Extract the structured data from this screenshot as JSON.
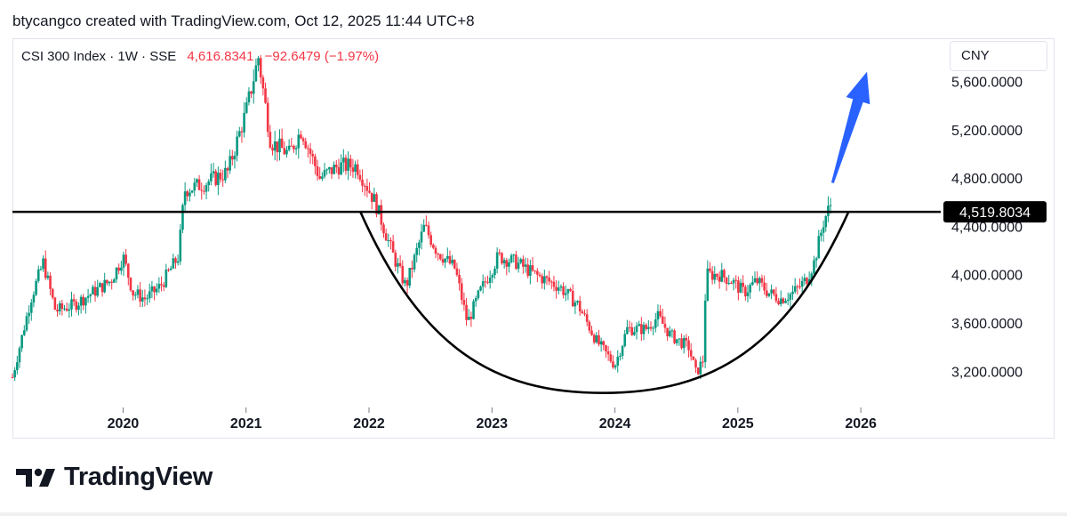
{
  "header": {
    "credit": "btycangco created with TradingView.com, Oct 12, 2025 11:44 UTC+8"
  },
  "legend": {
    "symbol": "CSI 300 Index · 1W · SSE",
    "last": "4,616.8341",
    "change": "−92.6479 (−1.97%)"
  },
  "currency": {
    "label": "CNY"
  },
  "colors": {
    "up": "#089981",
    "down": "#f23645",
    "arrow": "#2962ff",
    "line": "#000000",
    "axis_text": "#131722"
  },
  "chart_data": {
    "type": "candlestick",
    "title": "CSI 300 Index · 1W · SSE",
    "x_range": [
      2019.1,
      2026.65
    ],
    "ylim": [
      2900,
      5950
    ],
    "x_ticks": [
      {
        "value": 2020,
        "label": "2020"
      },
      {
        "value": 2021,
        "label": "2021"
      },
      {
        "value": 2022,
        "label": "2022"
      },
      {
        "value": 2023,
        "label": "2023"
      },
      {
        "value": 2024,
        "label": "2024"
      },
      {
        "value": 2025,
        "label": "2025"
      },
      {
        "value": 2026,
        "label": "2026"
      }
    ],
    "y_ticks": [
      {
        "value": 5600,
        "label": "5,600.0000"
      },
      {
        "value": 5200,
        "label": "5,200.0000"
      },
      {
        "value": 4800,
        "label": "4,800.0000"
      },
      {
        "value": 4400,
        "label": "4,400.0000"
      },
      {
        "value": 4000,
        "label": "4,000.0000"
      },
      {
        "value": 3600,
        "label": "3,600.0000"
      },
      {
        "value": 3200,
        "label": "3,200.0000"
      }
    ],
    "key_points": [
      [
        2019.1,
        3150
      ],
      [
        2019.25,
        3800
      ],
      [
        2019.35,
        4100
      ],
      [
        2019.45,
        3700
      ],
      [
        2019.6,
        3750
      ],
      [
        2019.75,
        3850
      ],
      [
        2019.9,
        3950
      ],
      [
        2020.0,
        4150
      ],
      [
        2020.08,
        3850
      ],
      [
        2020.18,
        3800
      ],
      [
        2020.3,
        3900
      ],
      [
        2020.45,
        4150
      ],
      [
        2020.5,
        4700
      ],
      [
        2020.65,
        4750
      ],
      [
        2020.85,
        4850
      ],
      [
        2021.0,
        5350
      ],
      [
        2021.1,
        5800
      ],
      [
        2021.2,
        5100
      ],
      [
        2021.35,
        5000
      ],
      [
        2021.45,
        5200
      ],
      [
        2021.6,
        4800
      ],
      [
        2021.75,
        4900
      ],
      [
        2021.9,
        4900
      ],
      [
        2022.05,
        4600
      ],
      [
        2022.2,
        4150
      ],
      [
        2022.3,
        3900
      ],
      [
        2022.45,
        4400
      ],
      [
        2022.55,
        4200
      ],
      [
        2022.7,
        4050
      ],
      [
        2022.8,
        3600
      ],
      [
        2022.9,
        3850
      ],
      [
        2023.05,
        4150
      ],
      [
        2023.2,
        4100
      ],
      [
        2023.35,
        4000
      ],
      [
        2023.55,
        3900
      ],
      [
        2023.7,
        3750
      ],
      [
        2023.85,
        3450
      ],
      [
        2024.0,
        3250
      ],
      [
        2024.1,
        3550
      ],
      [
        2024.25,
        3550
      ],
      [
        2024.35,
        3650
      ],
      [
        2024.45,
        3500
      ],
      [
        2024.6,
        3400
      ],
      [
        2024.66,
        3180
      ],
      [
        2024.72,
        3300
      ],
      [
        2024.74,
        4000
      ],
      [
        2024.85,
        4000
      ],
      [
        2024.95,
        3950
      ],
      [
        2025.05,
        3850
      ],
      [
        2025.15,
        3950
      ],
      [
        2025.25,
        3850
      ],
      [
        2025.35,
        3800
      ],
      [
        2025.45,
        3850
      ],
      [
        2025.55,
        3950
      ],
      [
        2025.62,
        4100
      ],
      [
        2025.7,
        4450
      ],
      [
        2025.77,
        4617
      ]
    ],
    "resistance": {
      "value": 4519.8034,
      "label": "4,519.8034"
    },
    "cup": {
      "x_start": 2021.93,
      "x_bottom": 2023.9,
      "x_end": 2025.9,
      "y_top": 4519.8,
      "y_bottom": 3020
    },
    "arrow": {
      "from": [
        2025.77,
        4760
      ],
      "to": [
        2026.05,
        5680
      ]
    }
  }
}
